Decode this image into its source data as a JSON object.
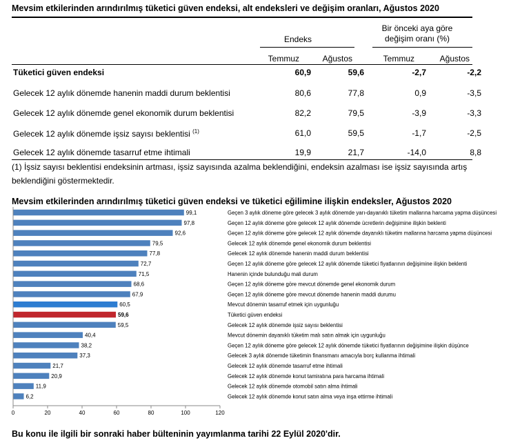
{
  "table": {
    "title": "Mevsim etkilerinden arındırılmış tüketici güven endeksi, alt endeksleri ve değişim oranları, Ağustos 2020",
    "group_index": "Endeks",
    "group_change": "Bir önceki aya göre değişim oranı (%)",
    "columns": [
      "Temmuz",
      "Ağustos",
      "Temmuz",
      "Ağustos"
    ],
    "rows": [
      {
        "label": "Tüketici güven endeksi",
        "sup": "",
        "values": [
          "60,9",
          "59,6",
          "-2,7",
          "-2,2"
        ]
      },
      {
        "label": "Gelecek 12 aylık dönemde hanenin maddi durum beklentisi",
        "sup": "",
        "values": [
          "80,6",
          "77,8",
          "0,9",
          "-3,5"
        ]
      },
      {
        "label": "Gelecek 12 aylık dönemde genel ekonomik durum beklentisi",
        "sup": "",
        "values": [
          "82,2",
          "79,5",
          "-3,9",
          "-3,3"
        ]
      },
      {
        "label": "Gelecek 12 aylık dönemde işsiz sayısı beklentisi",
        "sup": "(1)",
        "values": [
          "61,0",
          "59,5",
          "-1,7",
          "-2,5"
        ]
      },
      {
        "label": "Gelecek 12 aylık dönemde tasarruf etme ihtimali",
        "sup": "",
        "values": [
          "19,9",
          "21,7",
          "-14,0",
          "8,8"
        ]
      }
    ],
    "footnote": "(1) İşsiz sayısı beklentisi endeksinin artması, işsiz sayısında azalma beklendiğini, endeksin azalması ise işsiz sayısında artış beklendiğini göstermektedir."
  },
  "chart_data": {
    "type": "bar",
    "orientation": "horizontal",
    "title": "Mevsim etkilerinden arındırılmış tüketici güven endeksi ve tüketici eğilimine ilişkin endeksler, Ağustos 2020",
    "xlabel": "",
    "ylabel": "",
    "xlim": [
      0,
      120
    ],
    "xticks": [
      0,
      20,
      40,
      60,
      80,
      100,
      120
    ],
    "grid": false,
    "colors": {
      "default": "#4e81bd",
      "highlight_blue": "#2e7dd1",
      "highlight_red": "#c0272d"
    },
    "categories": [
      "Geçen 3 aylık döneme göre gelecek 3 aylık dönemde yarı-dayanıklı tüketim mallarına harcama yapma düşüncesi",
      "Geçen 12 aylık döneme göre gelecek 12 aylık dönemde ücretlerin değişimine ilişkin beklenti",
      "Geçen 12 aylık döneme göre gelecek 12 aylık dönemde  dayanıklı tüketim mallarına harcama yapma düşüncesi",
      "Gelecek 12 aylık dönemde genel ekonomik durum beklentisi",
      "Gelecek 12 aylık dönemde hanenin maddi durum beklentisi",
      "Geçen 12 aylık döneme göre gelecek 12 aylık dönemde tüketici fiyatlarının değişimine ilişkin beklenti",
      "Hanenin içinde bulunduğu mali durum",
      "Geçen 12 aylık döneme göre mevcut dönemde genel ekonomik durum",
      "Geçen 12 aylık döneme göre mevcut dönemde hanenin maddi durumu",
      "Mevcut dönemin tasarruf etmek için uygunluğu",
      "Tüketici güven endeksi",
      "Gelecek 12 aylık dönemde işsiz sayısı beklentisi",
      "Mevcut dönemin dayanıklı tüketim malı satın almak için uygunluğu",
      "Geçen 12 aylık döneme göre gelecek 12 aylık dönemde tüketici fiyatlarının değişimine ilişkin düşünce",
      "Gelecek 3 aylık dönemde tüketimin finansmanı amacıyla borç kullanma ihtimali",
      "Gelecek 12 aylık dönemde tasarruf etme ihtimali",
      "Gelecek 12 aylık dönemde konut tamiratına para harcama ihtimali",
      "Gelecek 12 aylık dönemde otomobil satın alma ihtimali",
      "Gelecek 12 aylık dönemde konut satın alma veya inşa ettirme ihtimali"
    ],
    "values": [
      99.1,
      97.8,
      92.6,
      79.5,
      77.8,
      72.7,
      71.5,
      68.6,
      67.9,
      60.5,
      59.6,
      59.5,
      40.4,
      38.2,
      37.3,
      21.7,
      20.9,
      11.9,
      6.2
    ],
    "value_labels": [
      "99,1",
      "97,8",
      "92,6",
      "79,5",
      "77,8",
      "72,7",
      "71,5",
      "68,6",
      "67,9",
      "60,5",
      "59,6",
      "59,5",
      "40,4",
      "38,2",
      "37,3",
      "21,7",
      "20,9",
      "11,9",
      "6,2"
    ],
    "highlight": {
      "9": "highlight_blue",
      "10": "highlight_red"
    }
  },
  "closing_note": "Bu konu ile ilgili bir sonraki haber bülteninin yayımlanma tarihi 22 Eylül 2020'dir."
}
